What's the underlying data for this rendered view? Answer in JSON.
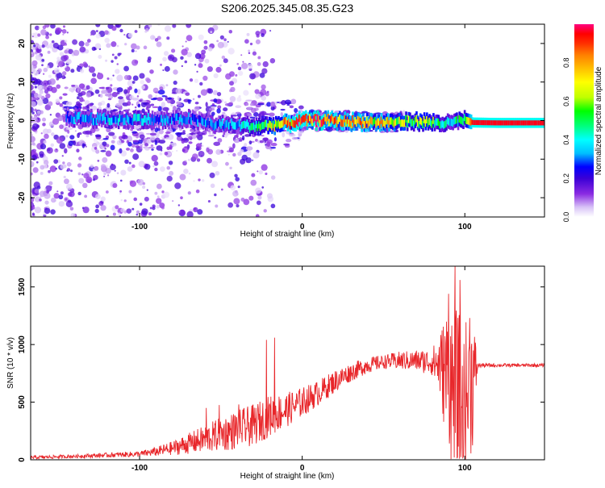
{
  "title": "S206.2025.345.08.35.G23",
  "chart_data": [
    {
      "type": "heatmap",
      "title": "S206.2025.345.08.35.G23",
      "xlabel": "Height of straight line (km)",
      "ylabel": "Frequency (Hz)",
      "xlim": [
        -167,
        149
      ],
      "ylim": [
        -25,
        25
      ],
      "xticks": [
        -100,
        0,
        100
      ],
      "yticks": [
        -20,
        -10,
        0,
        10,
        20
      ],
      "colorbar": {
        "label": "Normalized spectral amplitude",
        "range": [
          0,
          1
        ],
        "ticks": [
          "0.0",
          "0.2",
          "0.4",
          "0.6",
          "0.8"
        ],
        "colormap": [
          "#ffffff",
          "#d9c4f7",
          "#8a2be2",
          "#3b00d6",
          "#0000ff",
          "#00bfff",
          "#00ffff",
          "#00ff80",
          "#00ff00",
          "#bfff00",
          "#ffff00",
          "#ffbf00",
          "#ff8000",
          "#ff3000",
          "#ff0000",
          "#ff0080"
        ]
      },
      "ridge": {
        "x": [
          -145,
          -130,
          -115,
          -100,
          -85,
          -70,
          -55,
          -40,
          -30,
          -20,
          -10,
          0,
          10,
          20,
          30,
          40,
          50,
          60,
          70,
          80,
          90,
          100,
          105,
          120,
          149
        ],
        "frequency": [
          0.8,
          0.5,
          0.2,
          0.5,
          0.0,
          0.5,
          -1.0,
          -1.2,
          -1.5,
          -1.2,
          -0.8,
          0.0,
          0.0,
          0.0,
          -0.3,
          -0.3,
          -0.5,
          -0.4,
          -0.2,
          -0.5,
          -0.8,
          0.2,
          -0.5,
          -0.6,
          -0.6
        ],
        "amplitude": [
          0.3,
          0.35,
          0.35,
          0.35,
          0.3,
          0.3,
          0.3,
          0.35,
          0.45,
          0.55,
          0.7,
          0.85,
          0.85,
          0.8,
          0.75,
          0.7,
          0.65,
          0.6,
          0.55,
          0.5,
          0.4,
          0.45,
          0.9,
          0.9,
          0.9
        ]
      }
    },
    {
      "type": "line",
      "xlabel": "Height of straight line (km)",
      "ylabel": "SNR (10 * v/v)",
      "xlim": [
        -167,
        149
      ],
      "ylim": [
        0,
        1680
      ],
      "xticks": [
        -100,
        0,
        100
      ],
      "yticks": [
        0,
        500,
        1000,
        1500
      ],
      "color": "#e8262a",
      "envelope": {
        "x": [
          -167,
          -140,
          -120,
          -100,
          -90,
          -80,
          -70,
          -60,
          -50,
          -40,
          -30,
          -20,
          -10,
          0,
          10,
          20,
          30,
          40,
          50,
          60,
          70,
          80,
          85,
          90,
          95,
          100,
          105,
          108,
          120,
          149
        ],
        "mean": [
          20,
          30,
          40,
          50,
          70,
          100,
          140,
          180,
          220,
          260,
          300,
          380,
          430,
          500,
          580,
          680,
          760,
          820,
          850,
          860,
          860,
          850,
          820,
          700,
          500,
          500,
          700,
          820,
          820,
          820
        ],
        "spread": [
          15,
          15,
          20,
          25,
          40,
          60,
          90,
          120,
          150,
          170,
          180,
          180,
          150,
          130,
          110,
          100,
          80,
          70,
          60,
          80,
          90,
          120,
          300,
          700,
          800,
          700,
          600,
          20,
          15,
          15
        ]
      },
      "spikes": [
        {
          "x": -59,
          "y": 450
        },
        {
          "x": -51,
          "y": 475
        },
        {
          "x": -39,
          "y": 480
        },
        {
          "x": -22,
          "y": 1040
        },
        {
          "x": -17,
          "y": 1060
        },
        {
          "x": 94,
          "y": 1680
        },
        {
          "x": 90,
          "y": 1440
        },
        {
          "x": 97,
          "y": 1560
        },
        {
          "x": 103,
          "y": 1230
        }
      ]
    }
  ]
}
